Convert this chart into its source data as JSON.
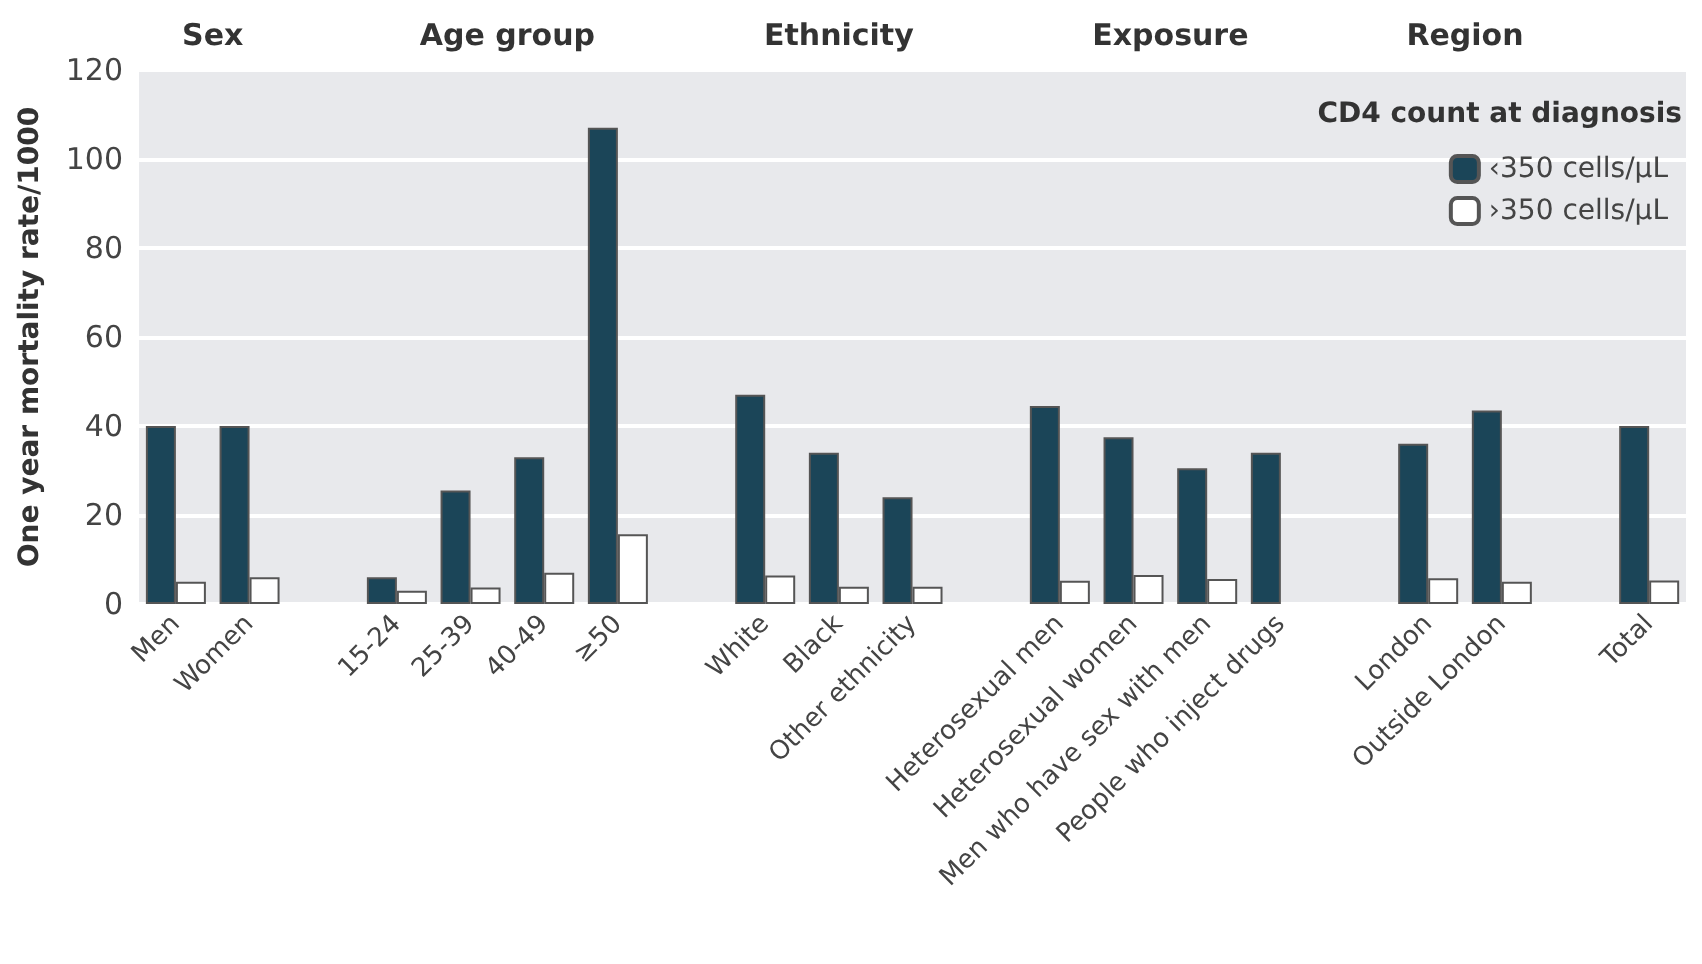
{
  "chart_data": {
    "type": "bar",
    "ylabel": "One year mortality rate/1000",
    "categories": [
      "Men",
      "Women",
      null,
      "15-24",
      "25-39",
      "40-49",
      "≥50",
      null,
      "White",
      "Black",
      "Other ethnicity",
      null,
      "Heterosexual men",
      "Heterosexual women",
      "Men who have sex with men",
      "People who inject drugs",
      null,
      "London",
      "Outside London",
      null,
      "Total"
    ],
    "series": [
      {
        "name": "‹350 cells/μL",
        "color": "#1b4558",
        "values": [
          40,
          40,
          null,
          6,
          25.5,
          33,
          107,
          null,
          47,
          34,
          24,
          null,
          44.5,
          37.5,
          30.5,
          34,
          null,
          36,
          43.5,
          null,
          40
        ]
      },
      {
        "name": "›350 cells/μL",
        "color": "#ffffff",
        "values": [
          5,
          6,
          null,
          3,
          3.7,
          7,
          15.7,
          null,
          6.4,
          3.9,
          3.9,
          null,
          5.2,
          6.5,
          5.6,
          null,
          null,
          5.8,
          5,
          null,
          5.3
        ]
      }
    ],
    "legend_title": "CD4 count at diagnosis",
    "annotations": [
      "Sex",
      "Age group",
      "Ethnicity",
      "Exposure",
      "Region"
    ],
    "ylim": [
      0,
      120
    ],
    "yticks": [
      0,
      20,
      40,
      60,
      80,
      100,
      120
    ],
    "grid": "y",
    "legend": "top right"
  }
}
